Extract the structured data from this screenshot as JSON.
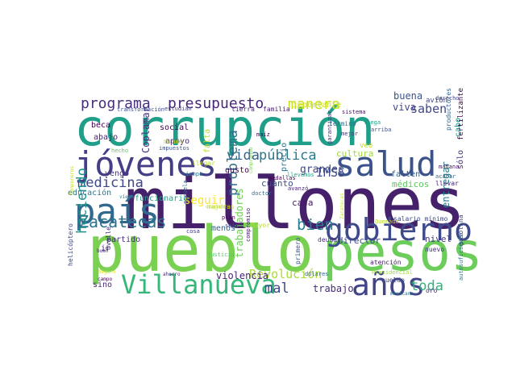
{
  "words": [
    {
      "text": "corrupción",
      "color": "#1f9e89"
    },
    {
      "text": "millones",
      "color": "#46216b"
    },
    {
      "text": "pueblo",
      "color": "#7ad151"
    },
    {
      "text": "pesos",
      "color": "#6ccd5a"
    },
    {
      "text": "salud",
      "color": "#3b528b"
    },
    {
      "text": "gobierno",
      "color": "#3e4a89"
    },
    {
      "text": "Villanueva",
      "color": "#35b779"
    },
    {
      "text": "jóvenes",
      "color": "#433e85"
    },
    {
      "text": "país",
      "color": "#31688e"
    },
    {
      "text": "años",
      "color": "#414487"
    },
    {
      "text": "programa",
      "color": "#472f7d"
    },
    {
      "text": "presupuesto",
      "color": "#482878"
    },
    {
      "text": "Zacatecas",
      "color": "#2c728e"
    },
    {
      "text": "medicina",
      "color": "#3f4788"
    },
    {
      "text": "manera",
      "color": "#c8e020"
    },
    {
      "text": "bien",
      "color": "#287d8e"
    },
    {
      "text": "haciendo",
      "color": "#21918c"
    },
    {
      "text": "problema",
      "color": "#2d708e"
    },
    {
      "text": "pública",
      "color": "#2a788e"
    },
    {
      "text": "vida",
      "color": "#33638d"
    },
    {
      "text": "IMSS",
      "color": "#3e4c8a"
    },
    {
      "text": "saben",
      "color": "#404688"
    },
    {
      "text": "grandes",
      "color": "#3f4889"
    },
    {
      "text": "toda",
      "color": "#2db27d"
    },
    {
      "text": "mal",
      "color": "#3e4989"
    },
    {
      "text": "seguir",
      "color": "#fde725"
    },
    {
      "text": "Revolución",
      "color": "#a8db34"
    },
    {
      "text": "violencia",
      "color": "#482173"
    },
    {
      "text": "trabajadores",
      "color": "#6ece58"
    },
    {
      "text": "trabajo",
      "color": "#472c7a"
    },
    {
      "text": "médicos",
      "color": "#5ec962"
    },
    {
      "text": "entregar",
      "color": "#287c8e"
    },
    {
      "text": "buena",
      "color": "#3b528b"
    },
    {
      "text": "viva",
      "color": "#404588"
    },
    {
      "text": "cultura",
      "color": "#9fda3a"
    },
    {
      "text": "social",
      "color": "#440154"
    },
    {
      "text": "apoyo",
      "color": "#472d7b"
    },
    {
      "text": "beca",
      "color": "#440154"
    },
    {
      "text": "abajo",
      "color": "#482576"
    },
    {
      "text": "Coplamar",
      "color": "#46337e"
    },
    {
      "text": "importante",
      "color": "#d0e11c"
    },
    {
      "text": "falta",
      "color": "#b5de2b"
    },
    {
      "text": "educación",
      "color": "#2a778e"
    },
    {
      "text": "funcionario",
      "color": "#20a386"
    },
    {
      "text": "precio",
      "color": "#2d718e"
    },
    {
      "text": "cuánto",
      "color": "#3b518b"
    },
    {
      "text": "gusto",
      "color": "#440154"
    },
    {
      "text": "casa",
      "color": "#481668"
    },
    {
      "text": "director",
      "color": "#3e4989"
    },
    {
      "text": "nivel",
      "color": "#453781"
    },
    {
      "text": "menos",
      "color": "#31668e"
    },
    {
      "text": "partido",
      "color": "#472f7d"
    },
    {
      "text": "ir",
      "color": "#481a6c"
    },
    {
      "text": "sino",
      "color": "#482878"
    },
    {
      "text": "cabo",
      "color": "#1f988b"
    },
    {
      "text": "sólo",
      "color": "#46307e"
    },
    {
      "text": "fertilizante",
      "color": "#450457"
    },
    {
      "text": "vengo",
      "color": "#463480"
    },
    {
      "text": "avión",
      "color": "#3f4889"
    },
    {
      "text": "productores",
      "color": "#32648e"
    },
    {
      "text": "falten",
      "color": "#33638d"
    },
    {
      "text": "mundo",
      "color": "#d2e21b"
    },
    {
      "text": "término",
      "color": "#2c718e"
    },
    {
      "text": "Mayor",
      "color": "#b8de29"
    },
    {
      "text": "mejoras",
      "color": "#d8e219"
    },
    {
      "text": "helicóptero",
      "color": "#3e4989"
    },
    {
      "text": "Ovalle",
      "color": "#472d7b"
    },
    {
      "text": "salario mínimo",
      "color": "#3e4a89"
    },
    {
      "text": "medallas",
      "color": "#440154"
    },
    {
      "text": "compromiso",
      "color": "#48186a"
    },
    {
      "text": "llevamos",
      "color": "#20a386"
    },
    {
      "text": "atención",
      "color": "#48186a"
    },
    {
      "text": "justicia",
      "color": "#56c667"
    },
    {
      "text": "gasolina",
      "color": "#424086"
    },
    {
      "text": "autosuficiente",
      "color": "#2a788e"
    },
    {
      "text": "deuda",
      "color": "#472d7b"
    },
    {
      "text": "dólares",
      "color": "#32658e"
    },
    {
      "text": "Presidencial",
      "color": "#9bd93c"
    },
    {
      "text": "sueldo",
      "color": "#3f4889"
    },
    {
      "text": "oro",
      "color": "#482475"
    },
    {
      "text": "nuevo",
      "color": "#46327e"
    },
    {
      "text": "mexicano",
      "color": "#2e6e8e"
    },
    {
      "text": "tierra",
      "color": "#482374"
    },
    {
      "text": "familia",
      "color": "#481f70"
    },
    {
      "text": "sistema",
      "color": "#481467"
    },
    {
      "text": "estudian",
      "color": "#414487"
    },
    {
      "text": "transformación",
      "color": "#3d4d8a"
    },
    {
      "text": "llevar",
      "color": "#482878"
    },
    {
      "text": "acabar",
      "color": "#2e6d8e"
    },
    {
      "text": "mañana",
      "color": "#470d60"
    },
    {
      "text": "derecho",
      "color": "#3f4788"
    },
    {
      "text": "llega",
      "color": "#1fa188"
    },
    {
      "text": "arriba",
      "color": "#3b528b"
    },
    {
      "text": "mejor",
      "color": "#453882"
    },
    {
      "text": "garantizar",
      "color": "#453781"
    },
    {
      "text": "maíz",
      "color": "#440154"
    },
    {
      "text": "hecho",
      "color": "#5ec962"
    },
    {
      "text": "impuestos",
      "color": "#3b528b"
    },
    {
      "text": "tiempo",
      "color": "#2a788e"
    },
    {
      "text": "llegar",
      "color": "#b5de2b"
    },
    {
      "text": "veo",
      "color": "#c2df23"
    },
    {
      "text": "plan",
      "color": "#440154"
    },
    {
      "text": "seis",
      "color": "#3e4989"
    },
    {
      "text": "doctor",
      "color": "#2c728e"
    },
    {
      "text": "avanzó",
      "color": "#482878"
    },
    {
      "text": "Quemada",
      "color": "#b5de2b"
    },
    {
      "text": "cosa",
      "color": "#443983"
    },
    {
      "text": "escuela",
      "color": "#31688e"
    },
    {
      "text": "primero",
      "color": "#3b528b"
    },
    {
      "text": "Temporeros",
      "color": "#c8e020"
    },
    {
      "text": "Seguro",
      "color": "#d8e219"
    },
    {
      "text": "ahorro",
      "color": "#472d7b"
    },
    {
      "text": "buen",
      "color": "#482878"
    },
    {
      "text": "viene",
      "color": "#277f8e"
    },
    {
      "text": "campo",
      "color": "#440154"
    },
    {
      "text": "ocupado",
      "color": "#b5de2b"
    },
    {
      "text": "comprando",
      "color": "#7ad151"
    },
    {
      "text": "Zacatecas",
      "color": "#c8e020"
    }
  ]
}
